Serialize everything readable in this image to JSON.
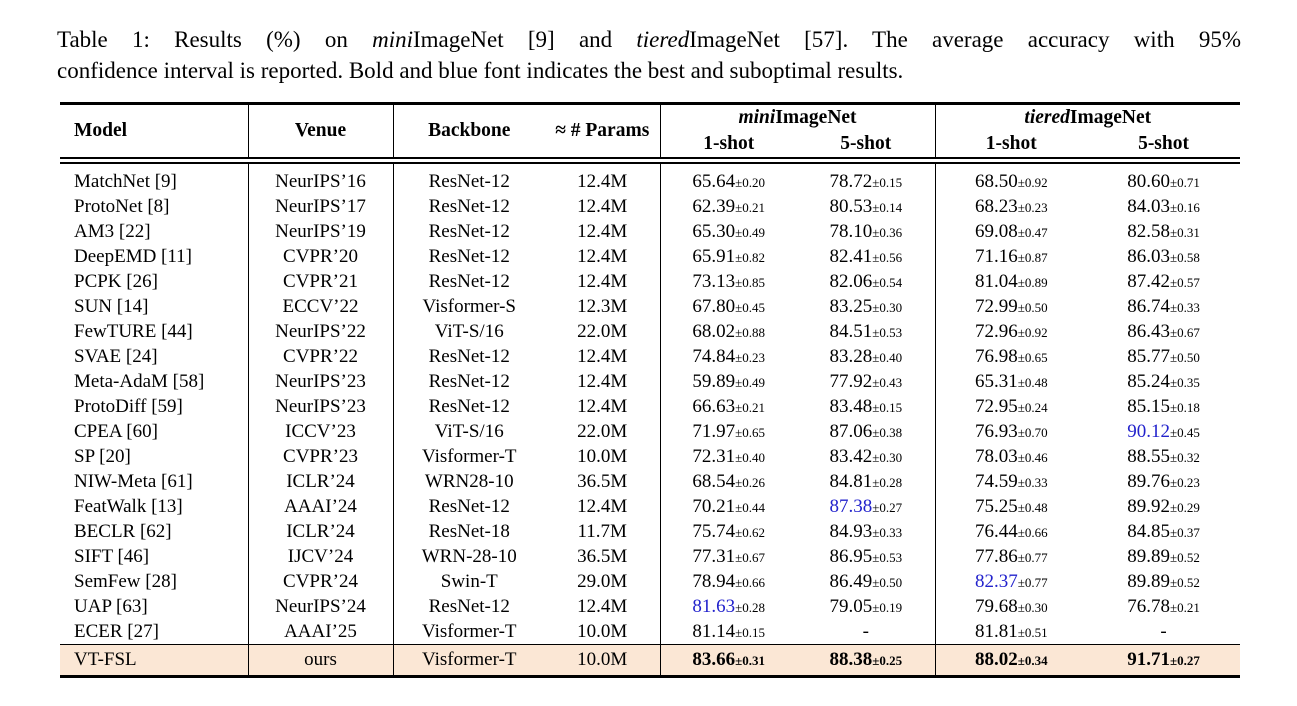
{
  "caption": {
    "line1_segments": [
      {
        "text": "Table 1: Results (%) on ",
        "italic": false
      },
      {
        "text": "mini",
        "italic": true
      },
      {
        "text": "ImageNet [9] and ",
        "italic": false
      },
      {
        "text": "tiered",
        "italic": true
      },
      {
        "text": "ImageNet [57]. The average accuracy with 95%",
        "italic": false
      }
    ],
    "line2": "confidence interval is reported. Bold and blue font indicates the best and suboptimal results."
  },
  "table": {
    "header": {
      "model": "Model",
      "venue": "Venue",
      "backbone": "Backbone",
      "params": "≈ # Params",
      "mini_group": {
        "em": "mini",
        "rest": "ImageNet"
      },
      "tiered_group": {
        "em": "tiered",
        "rest": "ImageNet"
      },
      "shot1": "1-shot",
      "shot2": "5-shot"
    },
    "rows": [
      {
        "model": "MatchNet [9]",
        "venue": "NeurIPS’16",
        "backbone": "ResNet-12",
        "params": "12.4M",
        "results": [
          {
            "value": "65.64",
            "pm": "0.20"
          },
          {
            "value": "78.72",
            "pm": "0.15"
          },
          {
            "value": "68.50",
            "pm": "0.92"
          },
          {
            "value": "80.60",
            "pm": "0.71"
          }
        ]
      },
      {
        "model": "ProtoNet [8]",
        "venue": "NeurIPS’17",
        "backbone": "ResNet-12",
        "params": "12.4M",
        "results": [
          {
            "value": "62.39",
            "pm": "0.21"
          },
          {
            "value": "80.53",
            "pm": "0.14"
          },
          {
            "value": "68.23",
            "pm": "0.23"
          },
          {
            "value": "84.03",
            "pm": "0.16"
          }
        ]
      },
      {
        "model": "AM3 [22]",
        "venue": "NeurIPS’19",
        "backbone": "ResNet-12",
        "params": "12.4M",
        "results": [
          {
            "value": "65.30",
            "pm": "0.49"
          },
          {
            "value": "78.10",
            "pm": "0.36"
          },
          {
            "value": "69.08",
            "pm": "0.47"
          },
          {
            "value": "82.58",
            "pm": "0.31"
          }
        ]
      },
      {
        "model": "DeepEMD [11]",
        "venue": "CVPR’20",
        "backbone": "ResNet-12",
        "params": "12.4M",
        "results": [
          {
            "value": "65.91",
            "pm": "0.82"
          },
          {
            "value": "82.41",
            "pm": "0.56"
          },
          {
            "value": "71.16",
            "pm": "0.87"
          },
          {
            "value": "86.03",
            "pm": "0.58"
          }
        ]
      },
      {
        "model": "PCPK [26]",
        "venue": "CVPR’21",
        "backbone": "ResNet-12",
        "params": "12.4M",
        "results": [
          {
            "value": "73.13",
            "pm": "0.85"
          },
          {
            "value": "82.06",
            "pm": "0.54"
          },
          {
            "value": "81.04",
            "pm": "0.89"
          },
          {
            "value": "87.42",
            "pm": "0.57"
          }
        ]
      },
      {
        "model": "SUN [14]",
        "venue": "ECCV’22",
        "backbone": "Visformer-S",
        "params": "12.3M",
        "results": [
          {
            "value": "67.80",
            "pm": "0.45"
          },
          {
            "value": "83.25",
            "pm": "0.30"
          },
          {
            "value": "72.99",
            "pm": "0.50"
          },
          {
            "value": "86.74",
            "pm": "0.33"
          }
        ]
      },
      {
        "model": "FewTURE [44]",
        "venue": "NeurIPS’22",
        "backbone": "ViT-S/16",
        "params": "22.0M",
        "results": [
          {
            "value": "68.02",
            "pm": "0.88"
          },
          {
            "value": "84.51",
            "pm": "0.53"
          },
          {
            "value": "72.96",
            "pm": "0.92"
          },
          {
            "value": "86.43",
            "pm": "0.67"
          }
        ]
      },
      {
        "model": "SVAE [24]",
        "venue": "CVPR’22",
        "backbone": "ResNet-12",
        "params": "12.4M",
        "results": [
          {
            "value": "74.84",
            "pm": "0.23"
          },
          {
            "value": "83.28",
            "pm": "0.40"
          },
          {
            "value": "76.98",
            "pm": "0.65"
          },
          {
            "value": "85.77",
            "pm": "0.50"
          }
        ]
      },
      {
        "model": "Meta-AdaM [58]",
        "venue": "NeurIPS’23",
        "backbone": "ResNet-12",
        "params": "12.4M",
        "results": [
          {
            "value": "59.89",
            "pm": "0.49"
          },
          {
            "value": "77.92",
            "pm": "0.43"
          },
          {
            "value": "65.31",
            "pm": "0.48"
          },
          {
            "value": "85.24",
            "pm": "0.35"
          }
        ]
      },
      {
        "model": "ProtoDiff [59]",
        "venue": "NeurIPS’23",
        "backbone": "ResNet-12",
        "params": "12.4M",
        "results": [
          {
            "value": "66.63",
            "pm": "0.21"
          },
          {
            "value": "83.48",
            "pm": "0.15"
          },
          {
            "value": "72.95",
            "pm": "0.24"
          },
          {
            "value": "85.15",
            "pm": "0.18"
          }
        ]
      },
      {
        "model": "CPEA [60]",
        "venue": "ICCV’23",
        "backbone": "ViT-S/16",
        "params": "22.0M",
        "results": [
          {
            "value": "71.97",
            "pm": "0.65"
          },
          {
            "value": "87.06",
            "pm": "0.38"
          },
          {
            "value": "76.93",
            "pm": "0.70"
          },
          {
            "value": "90.12",
            "pm": "0.45",
            "blue": true
          }
        ]
      },
      {
        "model": "SP [20]",
        "venue": "CVPR’23",
        "backbone": "Visformer-T",
        "params": "10.0M",
        "results": [
          {
            "value": "72.31",
            "pm": "0.40"
          },
          {
            "value": "83.42",
            "pm": "0.30"
          },
          {
            "value": "78.03",
            "pm": "0.46"
          },
          {
            "value": "88.55",
            "pm": "0.32"
          }
        ]
      },
      {
        "model": "NIW-Meta [61]",
        "venue": "ICLR’24",
        "backbone": "WRN28-10",
        "params": "36.5M",
        "results": [
          {
            "value": "68.54",
            "pm": "0.26"
          },
          {
            "value": "84.81",
            "pm": "0.28"
          },
          {
            "value": "74.59",
            "pm": "0.33"
          },
          {
            "value": "89.76",
            "pm": "0.23"
          }
        ]
      },
      {
        "model": "FeatWalk [13]",
        "venue": "AAAI’24",
        "backbone": "ResNet-12",
        "params": "12.4M",
        "results": [
          {
            "value": "70.21",
            "pm": "0.44"
          },
          {
            "value": "87.38",
            "pm": "0.27",
            "blue": true
          },
          {
            "value": "75.25",
            "pm": "0.48"
          },
          {
            "value": "89.92",
            "pm": "0.29"
          }
        ]
      },
      {
        "model": "BECLR [62]",
        "venue": "ICLR’24",
        "backbone": "ResNet-18",
        "params": "11.7M",
        "results": [
          {
            "value": "75.74",
            "pm": "0.62"
          },
          {
            "value": "84.93",
            "pm": "0.33"
          },
          {
            "value": "76.44",
            "pm": "0.66"
          },
          {
            "value": "84.85",
            "pm": "0.37"
          }
        ]
      },
      {
        "model": "SIFT [46]",
        "venue": "IJCV’24",
        "backbone": "WRN-28-10",
        "params": "36.5M",
        "results": [
          {
            "value": "77.31",
            "pm": "0.67"
          },
          {
            "value": "86.95",
            "pm": "0.53"
          },
          {
            "value": "77.86",
            "pm": "0.77"
          },
          {
            "value": "89.89",
            "pm": "0.52"
          }
        ]
      },
      {
        "model": "SemFew [28]",
        "venue": "CVPR’24",
        "backbone": "Swin-T",
        "params": "29.0M",
        "results": [
          {
            "value": "78.94",
            "pm": "0.66"
          },
          {
            "value": "86.49",
            "pm": "0.50"
          },
          {
            "value": "82.37",
            "pm": "0.77",
            "blue": true
          },
          {
            "value": "89.89",
            "pm": "0.52"
          }
        ]
      },
      {
        "model": "UAP [63]",
        "venue": "NeurIPS’24",
        "backbone": "ResNet-12",
        "params": "12.4M",
        "results": [
          {
            "value": "81.63",
            "pm": "0.28",
            "blue": true
          },
          {
            "value": "79.05",
            "pm": "0.19"
          },
          {
            "value": "79.68",
            "pm": "0.30"
          },
          {
            "value": "76.78",
            "pm": "0.21"
          }
        ]
      },
      {
        "model": "ECER [27]",
        "venue": "AAAI’25",
        "backbone": "Visformer-T",
        "params": "10.0M",
        "results": [
          {
            "value": "81.14",
            "pm": "0.15"
          },
          {
            "value": "-"
          },
          {
            "value": "81.81",
            "pm": "0.51"
          },
          {
            "value": "-"
          }
        ]
      }
    ],
    "highlight_row": {
      "model": "VT-FSL",
      "venue": "ours",
      "backbone": "Visformer-T",
      "params": "10.0M",
      "results": [
        {
          "value": "83.66",
          "pm": "0.31"
        },
        {
          "value": "88.38",
          "pm": "0.25"
        },
        {
          "value": "88.02",
          "pm": "0.34"
        },
        {
          "value": "91.71",
          "pm": "0.27"
        }
      ]
    }
  },
  "colors": {
    "suboptimal_blue": "#2222cc",
    "highlight_row_bg": "#fbe7d5"
  }
}
